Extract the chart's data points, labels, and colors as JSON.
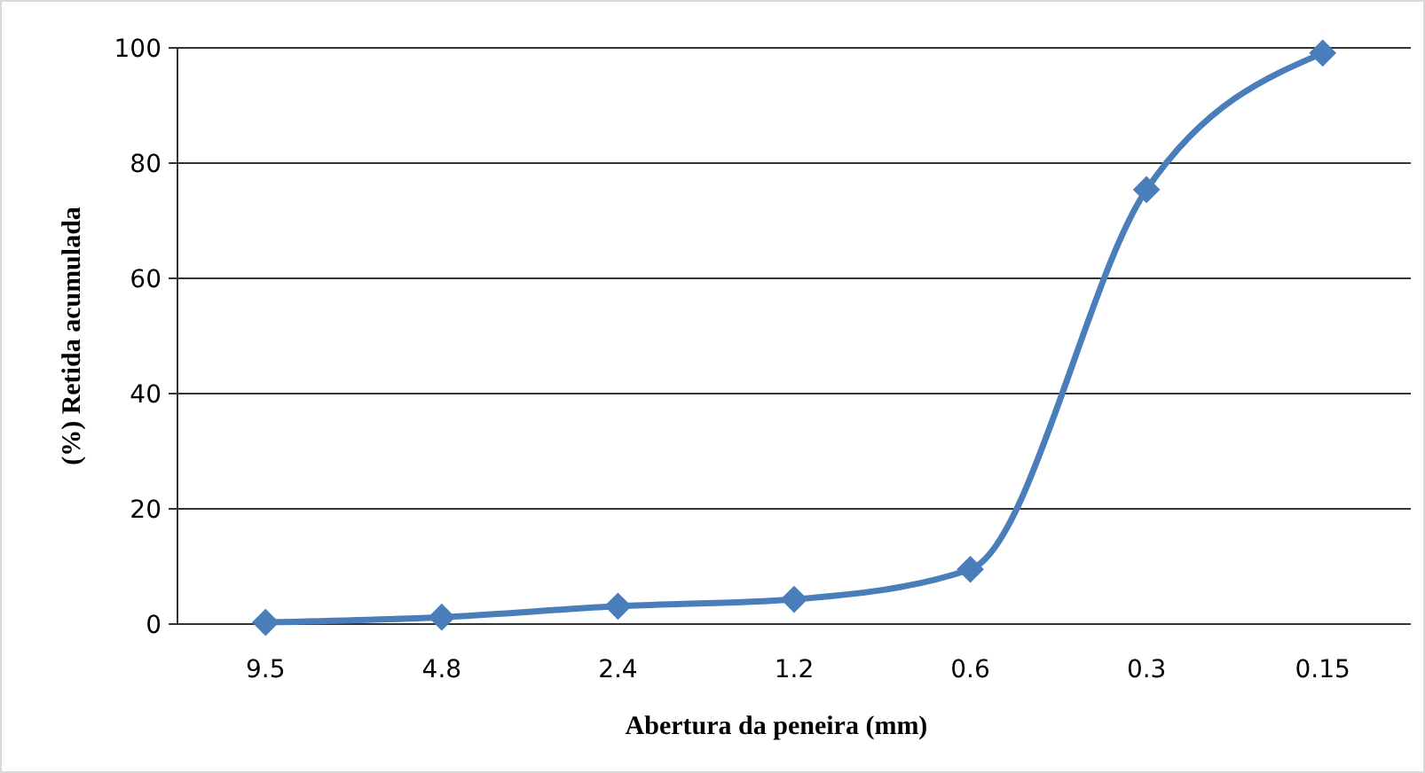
{
  "chart_data": {
    "type": "line",
    "xlabel": "Abertura da peneira (mm)",
    "ylabel": "(%) Retida acumulada",
    "categories": [
      "9.5",
      "4.8",
      "2.4",
      "1.2",
      "0.6",
      "0.3",
      "0.15"
    ],
    "series": [
      {
        "color": "#4a7ebb",
        "values": [
          0.3,
          1.2,
          3.1,
          4.3,
          9.5,
          75.4,
          99.1
        ]
      }
    ],
    "ylim": [
      0,
      100
    ],
    "yticks": [
      0,
      20,
      40,
      60,
      80,
      100
    ],
    "grid": "y",
    "marker": "diamond"
  }
}
